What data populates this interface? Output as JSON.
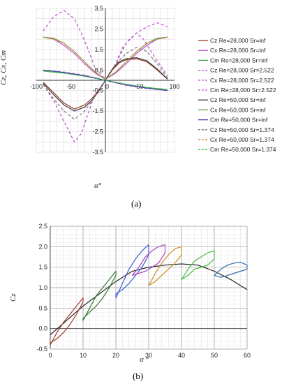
{
  "colors": {
    "cz": "#9b3b2b",
    "cx": "#c04fd0",
    "cm": "#3fa34d",
    "cz50": "#3a3a3a",
    "cx50": "#5ea030",
    "cm50": "#3a3ab0",
    "cz50s": "#777777",
    "cx50s": "#d08a30",
    "cm50s": "#3fbf3f"
  },
  "chart_data": [
    {
      "type": "line",
      "caption": "(a)",
      "xlabel": "α°",
      "ylabel": "Cz, Cx, Cm",
      "xlim": [
        -100,
        100
      ],
      "ylim": [
        -3.5,
        3.5
      ],
      "x_ticks": [
        -100,
        -50,
        0,
        50,
        100
      ],
      "y_ticks": [
        "3.5",
        "2.5",
        "1.5",
        "0.5",
        "-0.5",
        "-1.5",
        "-2.5",
        "-3.5"
      ],
      "grid": true,
      "legend_position": "right",
      "series": [
        {
          "name": "Cz Re=28,000 Sr=inf",
          "color_key": "cz",
          "dash": "solid",
          "x": [
            -90,
            -75,
            -60,
            -45,
            -30,
            -20,
            -10,
            0,
            10,
            20,
            30,
            45,
            60,
            75,
            90
          ],
          "y": [
            -0.1,
            -0.6,
            -1.1,
            -1.4,
            -1.2,
            -0.9,
            -0.5,
            0,
            0.5,
            0.85,
            1.0,
            1.05,
            0.9,
            0.5,
            0.05
          ]
        },
        {
          "name": "Cx Re=28,000 Sr=inf",
          "color_key": "cx",
          "dash": "solid",
          "x": [
            -90,
            -75,
            -60,
            -45,
            -30,
            -15,
            0,
            15,
            30,
            45,
            60,
            75,
            90
          ],
          "y": [
            2.1,
            2.0,
            1.7,
            1.3,
            0.8,
            0.35,
            0.05,
            0.35,
            0.8,
            1.3,
            1.7,
            2.0,
            2.1
          ]
        },
        {
          "name": "Cm Re=28,000 Sr=inf",
          "color_key": "cm",
          "dash": "solid",
          "x": [
            -90,
            -60,
            -30,
            0,
            30,
            60,
            90
          ],
          "y": [
            0.45,
            0.35,
            0.2,
            0,
            -0.2,
            -0.35,
            -0.45
          ]
        },
        {
          "name": "Cz Re=28,000 Sr=2.522",
          "color_key": "cx",
          "dash": "dash",
          "x": [
            -90,
            -75,
            -60,
            -45,
            -35,
            -25,
            -15,
            0,
            15,
            25,
            35,
            45,
            55,
            70,
            90
          ],
          "y": [
            -0.2,
            -1.0,
            -2.0,
            -3.0,
            -2.6,
            -1.6,
            -0.7,
            0,
            0.8,
            1.6,
            2.0,
            2.3,
            2.0,
            1.2,
            0.2
          ]
        },
        {
          "name": "Cx Re=28,000 Sr=2.522",
          "color_key": "cx",
          "dash": "dash",
          "x": [
            -90,
            -75,
            -60,
            -45,
            -35,
            -25,
            -15,
            0,
            15,
            30,
            45,
            60,
            75,
            90
          ],
          "y": [
            2.4,
            3.1,
            3.4,
            3.0,
            2.3,
            1.5,
            0.6,
            0.05,
            0.8,
            1.8,
            2.3,
            2.6,
            2.8,
            2.6
          ]
        },
        {
          "name": "Cm Re=28,000 Sr=2.522",
          "color_key": "cx",
          "dash": "dash",
          "x": [
            -90,
            -60,
            -30,
            0,
            30,
            60,
            90
          ],
          "y": [
            0.5,
            0.4,
            0.25,
            0,
            -0.25,
            -0.4,
            -0.5
          ]
        },
        {
          "name": "Cz Re=50,000 Sr=inf",
          "color_key": "cz50",
          "dash": "solid",
          "x": [
            -90,
            -75,
            -60,
            -45,
            -30,
            -20,
            -10,
            0,
            10,
            20,
            30,
            45,
            60,
            75,
            90
          ],
          "y": [
            -0.15,
            -0.7,
            -1.2,
            -1.5,
            -1.3,
            -1.0,
            -0.55,
            0,
            0.55,
            0.9,
            1.05,
            1.1,
            0.95,
            0.55,
            0.05
          ]
        },
        {
          "name": "Cx Re=50,000 Sr=inf",
          "color_key": "cx50",
          "dash": "solid",
          "x": [
            -90,
            -75,
            -60,
            -45,
            -30,
            -15,
            0,
            15,
            30,
            45,
            60,
            75,
            90
          ],
          "y": [
            2.1,
            2.05,
            1.8,
            1.4,
            0.9,
            0.4,
            0.05,
            0.4,
            0.9,
            1.4,
            1.8,
            2.05,
            2.1
          ]
        },
        {
          "name": "Cm Re=50,000 Sr=inf",
          "color_key": "cm50",
          "dash": "solid",
          "x": [
            -90,
            -60,
            -30,
            0,
            30,
            60,
            90
          ],
          "y": [
            0.5,
            0.38,
            0.22,
            0,
            -0.22,
            -0.38,
            -0.5
          ]
        },
        {
          "name": "Cz Re=50,000 Sr=1.374",
          "color_key": "cz50s",
          "dash": "dash",
          "x": [
            -90,
            -75,
            -60,
            -45,
            -30,
            -15,
            0,
            15,
            30,
            45,
            60,
            75,
            90
          ],
          "y": [
            -0.2,
            -0.9,
            -1.5,
            -1.9,
            -1.5,
            -0.8,
            0,
            0.8,
            1.3,
            1.6,
            1.4,
            0.8,
            0.1
          ]
        },
        {
          "name": "Cx Re=50,000 Sr=1.374",
          "color_key": "cx50s",
          "dash": "dash",
          "x": [
            -90,
            -75,
            -60,
            -45,
            -30,
            -15,
            0,
            15,
            30,
            45,
            60,
            75,
            90
          ],
          "y": [
            2.1,
            2.0,
            1.8,
            1.4,
            0.9,
            0.4,
            0.05,
            0.4,
            0.9,
            1.4,
            1.8,
            2.0,
            2.1
          ]
        },
        {
          "name": "Cm Re=50,000 Sr=1.374",
          "color_key": "cm50s",
          "dash": "dash",
          "x": [
            -90,
            -60,
            -30,
            0,
            30,
            60,
            90
          ],
          "y": [
            0.45,
            0.35,
            0.2,
            0,
            -0.2,
            -0.35,
            -0.45
          ]
        }
      ]
    },
    {
      "type": "line",
      "caption": "(b)",
      "xlabel": "α °",
      "ylabel": "Cz",
      "xlim": [
        0,
        60
      ],
      "ylim": [
        -0.5,
        2.5
      ],
      "x_ticks": [
        "0",
        "10",
        "20",
        "30",
        "40",
        "50",
        "60"
      ],
      "y_ticks": [
        "2.5",
        "2.0",
        "1.5",
        "1.0",
        "0.5",
        "0.0",
        "-0.5"
      ],
      "grid": true,
      "static_curve": {
        "color": "#222222",
        "x": [
          0,
          5,
          10,
          15,
          20,
          25,
          30,
          35,
          40,
          45,
          50,
          55,
          60
        ],
        "y": [
          -0.15,
          0.2,
          0.55,
          0.85,
          1.15,
          1.4,
          1.5,
          1.55,
          1.58,
          1.55,
          1.4,
          1.2,
          0.95
        ]
      },
      "loops": [
        {
          "center": 5,
          "color": "#a33a2a",
          "x": [
            0,
            2,
            4,
            6,
            8,
            10,
            10,
            8,
            6,
            4,
            2,
            0,
            0
          ],
          "y": [
            -0.4,
            -0.1,
            0.15,
            0.35,
            0.55,
            0.75,
            0.65,
            0.35,
            0.1,
            -0.1,
            -0.25,
            -0.35,
            -0.4
          ]
        },
        {
          "center": 15,
          "color": "#2f7a2f",
          "x": [
            10,
            12,
            14,
            16,
            18,
            20,
            20,
            18,
            16,
            14,
            12,
            10,
            10
          ],
          "y": [
            0.2,
            0.5,
            0.8,
            1.0,
            1.2,
            1.4,
            1.3,
            1.0,
            0.75,
            0.55,
            0.4,
            0.25,
            0.2
          ]
        },
        {
          "center": 25,
          "color": "#3a5ad0",
          "x": [
            20,
            22,
            24,
            26,
            28,
            30,
            30,
            28,
            26,
            24,
            22,
            20,
            20
          ],
          "y": [
            0.75,
            1.1,
            1.45,
            1.7,
            1.9,
            2.05,
            1.8,
            1.5,
            1.3,
            1.1,
            0.95,
            0.85,
            0.75
          ]
        },
        {
          "center": 30,
          "color": "#b040c0",
          "x": [
            25,
            27,
            29,
            31,
            33,
            35,
            35,
            33,
            31,
            29,
            27,
            25,
            25
          ],
          "y": [
            1.3,
            1.5,
            1.75,
            1.9,
            2.0,
            2.05,
            1.85,
            1.6,
            1.5,
            1.4,
            1.35,
            1.3,
            1.3
          ]
        },
        {
          "center": 35,
          "color": "#d08a20",
          "x": [
            30,
            32,
            34,
            36,
            38,
            40,
            40,
            38,
            36,
            34,
            32,
            30,
            30
          ],
          "y": [
            1.05,
            1.35,
            1.6,
            1.8,
            1.95,
            2.0,
            1.8,
            1.6,
            1.45,
            1.3,
            1.15,
            1.05,
            1.05
          ]
        },
        {
          "center": 45,
          "color": "#3fbf3f",
          "x": [
            40,
            42,
            44,
            46,
            48,
            50,
            50,
            48,
            46,
            44,
            42,
            40,
            40
          ],
          "y": [
            1.2,
            1.45,
            1.65,
            1.75,
            1.85,
            1.9,
            1.7,
            1.55,
            1.5,
            1.45,
            1.3,
            1.2,
            1.2
          ]
        },
        {
          "center": 55,
          "color": "#2f6ab0",
          "x": [
            50,
            52,
            54,
            56,
            58,
            60,
            60,
            58,
            56,
            54,
            52,
            50,
            50
          ],
          "y": [
            1.3,
            1.45,
            1.55,
            1.6,
            1.62,
            1.55,
            1.45,
            1.4,
            1.35,
            1.3,
            1.25,
            1.3,
            1.3
          ]
        }
      ]
    }
  ]
}
